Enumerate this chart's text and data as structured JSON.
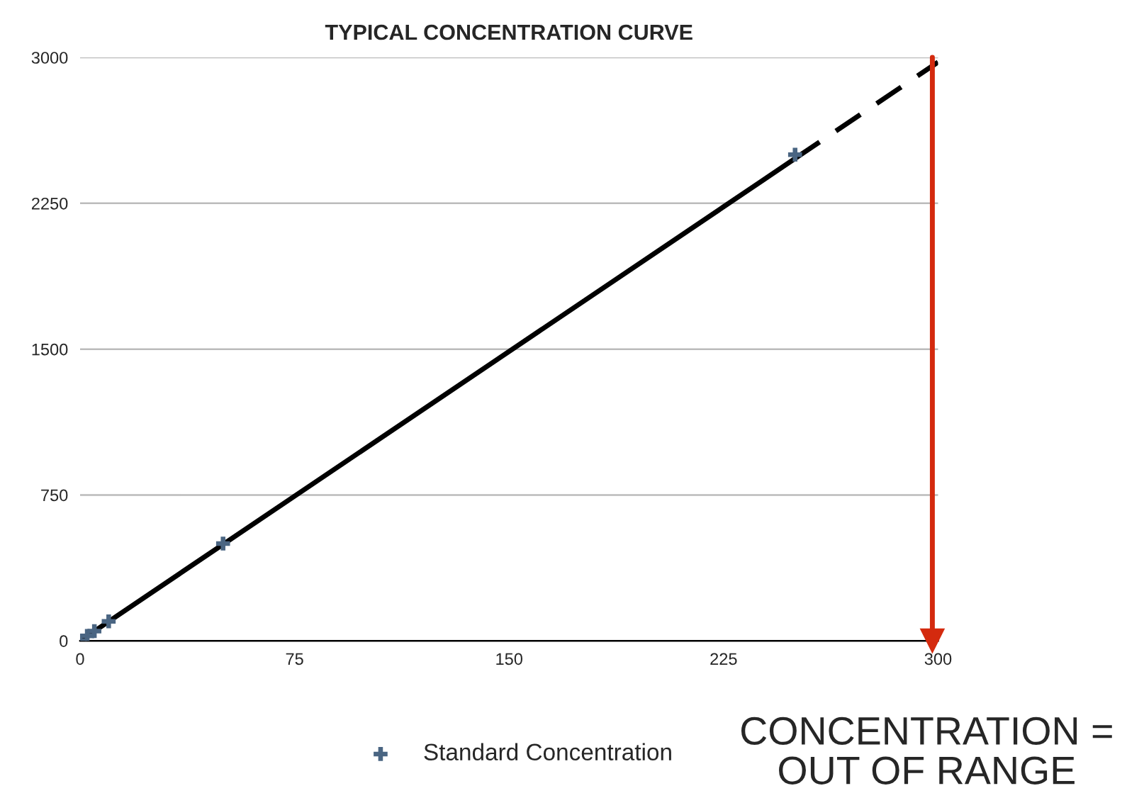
{
  "chart_data": {
    "type": "scatter",
    "title": "TYPICAL CONCENTRATION CURVE",
    "xlim": [
      0,
      300
    ],
    "xticks": [
      0,
      75,
      150,
      225,
      300
    ],
    "ylim": [
      0,
      3000
    ],
    "yticks": [
      0,
      750,
      1500,
      2250,
      3000
    ],
    "grid": "y",
    "legend": "bottom",
    "series": [
      {
        "name": "Standard Concentration",
        "marker": "cross",
        "color": "#4a6582",
        "x": [
          0,
          2.5,
          5,
          10,
          50,
          250
        ],
        "values": [
          0,
          25,
          50,
          100,
          500,
          2500
        ]
      },
      {
        "type": "line",
        "color": "#000000",
        "line_style": "solid",
        "x": [
          0,
          250
        ],
        "values": [
          0,
          2480
        ]
      },
      {
        "type": "line",
        "color": "#000000",
        "line_style": "dashed",
        "x": [
          250,
          300
        ],
        "values": [
          2480,
          2976
        ]
      }
    ],
    "ref_lines": [
      {
        "axis": "x",
        "value": 298,
        "color": "#d42a0e"
      }
    ],
    "annotations": [
      "CONCENTRATION =\nOUT OF RANGE"
    ]
  }
}
